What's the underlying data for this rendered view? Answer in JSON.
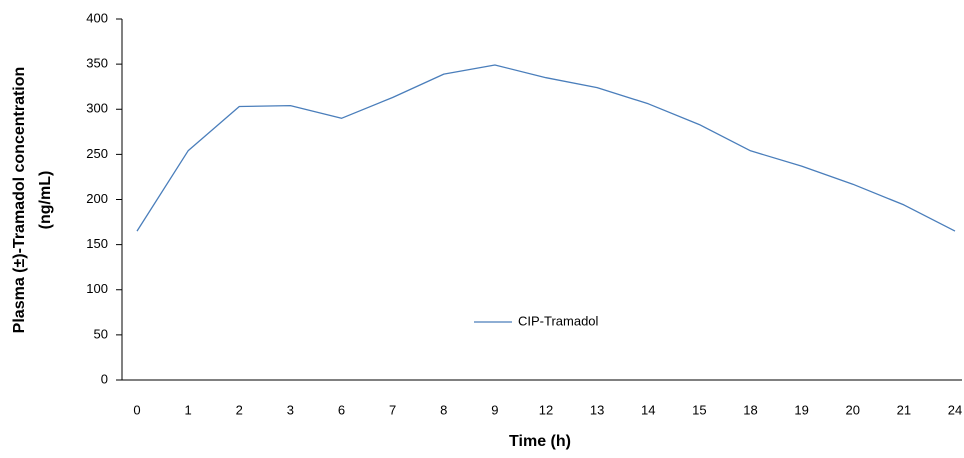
{
  "chart_data": {
    "type": "line",
    "ylabel": [
      "Plasma (±)-Tramadol concentration",
      "(ng/mL)"
    ],
    "xlabel": "Time (h)",
    "categories": [
      "0",
      "1",
      "2",
      "3",
      "6",
      "7",
      "8",
      "9",
      "12",
      "13",
      "14",
      "15",
      "18",
      "19",
      "20",
      "21",
      "24"
    ],
    "series": [
      {
        "name": "CIP-Tramadol",
        "color": "#4a7ebb",
        "values": [
          165,
          254,
          303,
          304,
          290,
          313,
          339,
          349,
          335,
          324,
          306,
          283,
          254,
          237,
          217,
          194,
          165
        ]
      }
    ],
    "ylim": [
      0,
      400
    ],
    "yticks": [
      0,
      50,
      100,
      150,
      200,
      250,
      300,
      350,
      400
    ],
    "grid": false,
    "legend": "center"
  }
}
